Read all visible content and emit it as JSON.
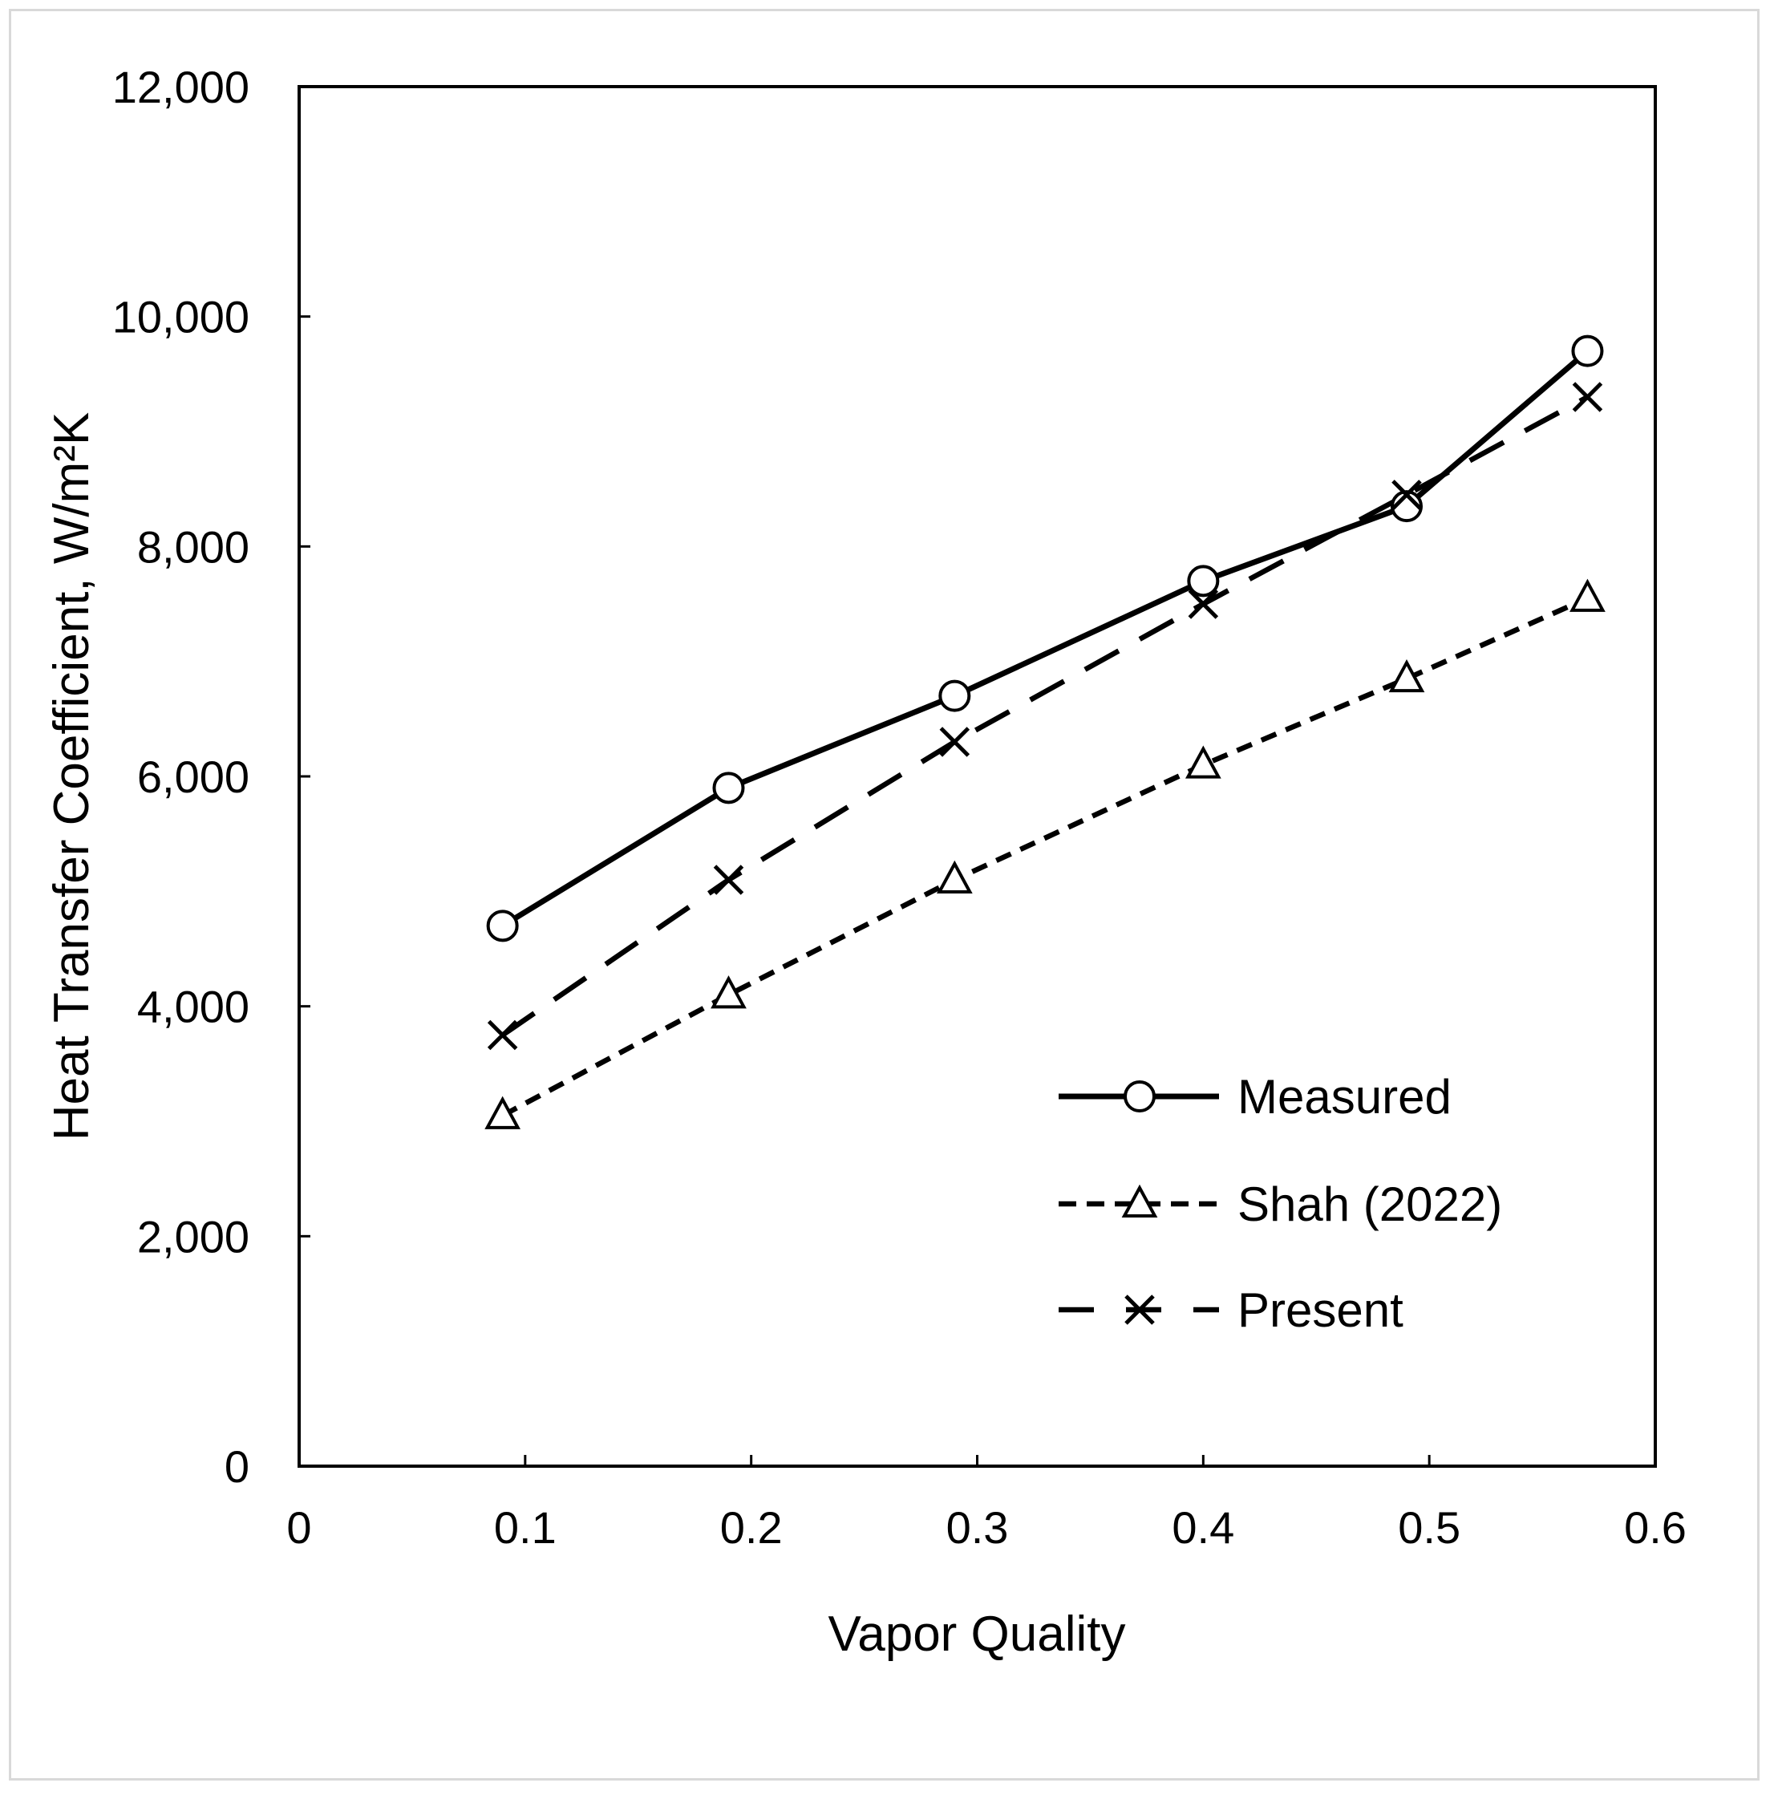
{
  "chart_data": {
    "type": "line",
    "xlabel": "Vapor Quality",
    "ylabel": "Heat Transfer Coefficient, W/m²K",
    "xlim": [
      0,
      0.6
    ],
    "ylim": [
      0,
      12000
    ],
    "x_ticks": [
      "0",
      "0.1",
      "0.2",
      "0.3",
      "0.4",
      "0.5",
      "0.6"
    ],
    "y_ticks": [
      "0",
      "2,000",
      "4,000",
      "6,000",
      "8,000",
      "10,000",
      "12,000"
    ],
    "grid": false,
    "legend_position": "bottom-right",
    "series": [
      {
        "name": "Measured",
        "line_style": "solid",
        "marker": "circle",
        "color": "#000000",
        "x": [
          0.09,
          0.19,
          0.29,
          0.4,
          0.49,
          0.57
        ],
        "y": [
          4700,
          5900,
          6700,
          7700,
          8350,
          9700
        ]
      },
      {
        "name": "Shah (2022)",
        "line_style": "short-dash",
        "marker": "triangle",
        "color": "#000000",
        "x": [
          0.09,
          0.19,
          0.29,
          0.4,
          0.49,
          0.57
        ],
        "y": [
          3050,
          4100,
          5100,
          6100,
          6850,
          7550
        ]
      },
      {
        "name": "Present",
        "line_style": "long-dash",
        "marker": "x",
        "color": "#000000",
        "x": [
          0.09,
          0.19,
          0.29,
          0.4,
          0.49,
          0.57
        ],
        "y": [
          3750,
          5100,
          6300,
          7500,
          8450,
          9300
        ]
      }
    ]
  }
}
